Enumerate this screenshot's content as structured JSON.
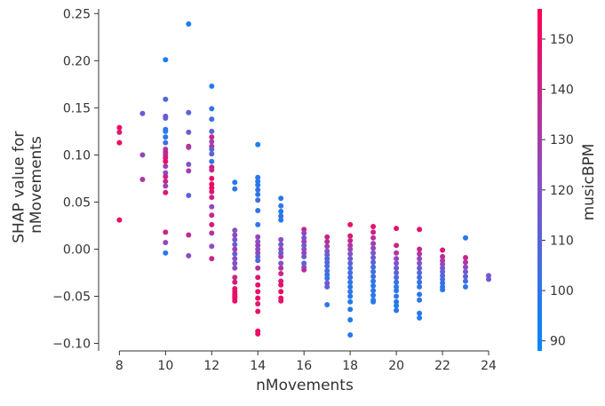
{
  "chart_data": {
    "type": "scatter",
    "xlabel": "nMovements",
    "ylabel_lines": [
      "SHAP value for",
      "nMovements"
    ],
    "xlim": [
      7.1,
      25.0
    ],
    "ylim": [
      -0.108,
      0.255
    ],
    "xticks": [
      8,
      10,
      12,
      14,
      16,
      18,
      20,
      22,
      24
    ],
    "yticks": [
      -0.1,
      -0.05,
      0.0,
      0.05,
      0.1,
      0.15,
      0.2,
      0.25
    ],
    "ytick_labels": [
      "−0.10",
      "−0.05",
      "0.00",
      "0.05",
      "0.10",
      "0.15",
      "0.20",
      "0.25"
    ],
    "grid": false,
    "colorbar": {
      "label": "musicBPM",
      "range": [
        88,
        156
      ],
      "ticks": [
        90,
        100,
        110,
        120,
        130,
        140,
        150
      ],
      "low_color": "#008afb",
      "mid_color": "#8a4ec4",
      "high_color": "#ff0052"
    },
    "points": [
      [
        8,
        0.129,
        150
      ],
      [
        8,
        0.124,
        148
      ],
      [
        8,
        0.113,
        152
      ],
      [
        8,
        0.031,
        150
      ],
      [
        9,
        0.144,
        115
      ],
      [
        9,
        0.1,
        125
      ],
      [
        9,
        0.074,
        132
      ],
      [
        10,
        0.201,
        95
      ],
      [
        10,
        0.159,
        108
      ],
      [
        10,
        0.141,
        118
      ],
      [
        10,
        0.139,
        112
      ],
      [
        10,
        0.127,
        98
      ],
      [
        10,
        0.125,
        100
      ],
      [
        10,
        0.119,
        96
      ],
      [
        10,
        0.113,
        105
      ],
      [
        10,
        0.106,
        130
      ],
      [
        10,
        0.103,
        140
      ],
      [
        10,
        0.1,
        135
      ],
      [
        10,
        0.097,
        145
      ],
      [
        10,
        0.093,
        150
      ],
      [
        10,
        0.088,
        128
      ],
      [
        10,
        0.081,
        120
      ],
      [
        10,
        0.077,
        142
      ],
      [
        10,
        0.072,
        138
      ],
      [
        10,
        0.067,
        126
      ],
      [
        10,
        0.06,
        145
      ],
      [
        10,
        0.018,
        140
      ],
      [
        10,
        0.007,
        125
      ],
      [
        10,
        -0.004,
        98
      ],
      [
        11,
        0.239,
        95
      ],
      [
        11,
        0.145,
        110
      ],
      [
        11,
        0.124,
        116
      ],
      [
        11,
        0.109,
        140
      ],
      [
        11,
        0.108,
        130
      ],
      [
        11,
        0.09,
        122
      ],
      [
        11,
        0.083,
        130
      ],
      [
        11,
        0.057,
        112
      ],
      [
        11,
        0.015,
        138
      ],
      [
        11,
        -0.007,
        122
      ],
      [
        12,
        0.173,
        95
      ],
      [
        12,
        0.149,
        100
      ],
      [
        12,
        0.138,
        104
      ],
      [
        12,
        0.125,
        110
      ],
      [
        12,
        0.119,
        140
      ],
      [
        12,
        0.114,
        128
      ],
      [
        12,
        0.109,
        135
      ],
      [
        12,
        0.106,
        108
      ],
      [
        12,
        0.101,
        112
      ],
      [
        12,
        0.093,
        100
      ],
      [
        12,
        0.087,
        145
      ],
      [
        12,
        0.084,
        138
      ],
      [
        12,
        0.075,
        148
      ],
      [
        12,
        0.069,
        150
      ],
      [
        12,
        0.065,
        152
      ],
      [
        12,
        0.061,
        146
      ],
      [
        12,
        0.055,
        142
      ],
      [
        12,
        0.045,
        125
      ],
      [
        12,
        0.036,
        138
      ],
      [
        12,
        0.026,
        145
      ],
      [
        12,
        0.017,
        133
      ],
      [
        12,
        0.003,
        122
      ],
      [
        12,
        -0.01,
        140
      ],
      [
        13,
        0.071,
        96
      ],
      [
        13,
        0.064,
        100
      ],
      [
        13,
        0.02,
        120
      ],
      [
        13,
        0.015,
        125
      ],
      [
        13,
        0.01,
        118
      ],
      [
        13,
        0.005,
        112
      ],
      [
        13,
        0.0,
        130
      ],
      [
        13,
        -0.005,
        115
      ],
      [
        13,
        -0.01,
        122
      ],
      [
        13,
        -0.015,
        118
      ],
      [
        13,
        -0.02,
        124
      ],
      [
        13,
        -0.03,
        140
      ],
      [
        13,
        -0.035,
        145
      ],
      [
        13,
        -0.042,
        150
      ],
      [
        13,
        -0.045,
        148
      ],
      [
        13,
        -0.048,
        152
      ],
      [
        13,
        -0.05,
        146
      ],
      [
        13,
        -0.052,
        150
      ],
      [
        13,
        -0.055,
        152
      ],
      [
        14,
        0.111,
        95
      ],
      [
        14,
        0.076,
        98
      ],
      [
        14,
        0.072,
        100
      ],
      [
        14,
        0.068,
        96
      ],
      [
        14,
        0.063,
        102
      ],
      [
        14,
        0.058,
        98
      ],
      [
        14,
        0.052,
        104
      ],
      [
        14,
        0.041,
        100
      ],
      [
        14,
        0.026,
        98
      ],
      [
        14,
        0.013,
        125
      ],
      [
        14,
        0.008,
        120
      ],
      [
        14,
        0.004,
        130
      ],
      [
        14,
        0.0,
        118
      ],
      [
        14,
        -0.004,
        126
      ],
      [
        14,
        -0.008,
        112
      ],
      [
        14,
        -0.012,
        108
      ],
      [
        14,
        -0.02,
        135
      ],
      [
        14,
        -0.03,
        145
      ],
      [
        14,
        -0.038,
        150
      ],
      [
        14,
        -0.045,
        148
      ],
      [
        14,
        -0.052,
        152
      ],
      [
        14,
        -0.058,
        146
      ],
      [
        14,
        -0.066,
        150
      ],
      [
        14,
        -0.087,
        152
      ],
      [
        14,
        -0.09,
        150
      ],
      [
        15,
        0.054,
        98
      ],
      [
        15,
        0.046,
        100
      ],
      [
        15,
        0.04,
        96
      ],
      [
        15,
        0.035,
        102
      ],
      [
        15,
        0.031,
        98
      ],
      [
        15,
        0.01,
        122
      ],
      [
        15,
        0.005,
        118
      ],
      [
        15,
        0.0,
        126
      ],
      [
        15,
        -0.004,
        112
      ],
      [
        15,
        -0.008,
        130
      ],
      [
        15,
        -0.015,
        120
      ],
      [
        15,
        -0.02,
        135
      ],
      [
        15,
        -0.026,
        140
      ],
      [
        15,
        -0.034,
        145
      ],
      [
        15,
        -0.038,
        148
      ],
      [
        15,
        -0.045,
        150
      ],
      [
        15,
        -0.052,
        152
      ],
      [
        15,
        -0.055,
        146
      ],
      [
        16,
        0.021,
        140
      ],
      [
        16,
        0.017,
        125
      ],
      [
        16,
        0.012,
        118
      ],
      [
        16,
        0.008,
        130
      ],
      [
        16,
        0.004,
        112
      ],
      [
        16,
        0.0,
        122
      ],
      [
        16,
        -0.004,
        128
      ],
      [
        16,
        -0.008,
        115
      ],
      [
        16,
        -0.015,
        110
      ],
      [
        16,
        -0.019,
        120
      ],
      [
        16,
        -0.022,
        135
      ],
      [
        17,
        0.013,
        140
      ],
      [
        17,
        0.008,
        135
      ],
      [
        17,
        0.003,
        128
      ],
      [
        17,
        -0.002,
        120
      ],
      [
        17,
        -0.006,
        115
      ],
      [
        17,
        -0.01,
        110
      ],
      [
        17,
        -0.014,
        106
      ],
      [
        17,
        -0.018,
        108
      ],
      [
        17,
        -0.023,
        104
      ],
      [
        17,
        -0.027,
        102
      ],
      [
        17,
        -0.031,
        100
      ],
      [
        17,
        -0.036,
        118
      ],
      [
        17,
        -0.04,
        112
      ],
      [
        17,
        -0.059,
        100
      ],
      [
        18,
        0.026,
        150
      ],
      [
        18,
        0.014,
        145
      ],
      [
        18,
        0.009,
        138
      ],
      [
        18,
        0.004,
        132
      ],
      [
        18,
        0.0,
        126
      ],
      [
        18,
        -0.005,
        120
      ],
      [
        18,
        -0.01,
        115
      ],
      [
        18,
        -0.015,
        110
      ],
      [
        18,
        -0.02,
        106
      ],
      [
        18,
        -0.025,
        104
      ],
      [
        18,
        -0.03,
        102
      ],
      [
        18,
        -0.035,
        100
      ],
      [
        18,
        -0.04,
        98
      ],
      [
        18,
        -0.045,
        100
      ],
      [
        18,
        -0.05,
        98
      ],
      [
        18,
        -0.056,
        96
      ],
      [
        18,
        -0.064,
        98
      ],
      [
        18,
        -0.075,
        96
      ],
      [
        18,
        -0.091,
        98
      ],
      [
        19,
        0.024,
        148
      ],
      [
        19,
        0.018,
        142
      ],
      [
        19,
        0.012,
        136
      ],
      [
        19,
        0.006,
        130
      ],
      [
        19,
        0.001,
        124
      ],
      [
        19,
        -0.004,
        118
      ],
      [
        19,
        -0.009,
        114
      ],
      [
        19,
        -0.014,
        110
      ],
      [
        19,
        -0.019,
        106
      ],
      [
        19,
        -0.024,
        104
      ],
      [
        19,
        -0.029,
        102
      ],
      [
        19,
        -0.034,
        100
      ],
      [
        19,
        -0.039,
        98
      ],
      [
        19,
        -0.044,
        100
      ],
      [
        19,
        -0.049,
        98
      ],
      [
        19,
        -0.054,
        96
      ],
      [
        19,
        -0.056,
        98
      ],
      [
        20,
        0.022,
        148
      ],
      [
        20,
        0.004,
        140
      ],
      [
        20,
        -0.004,
        132
      ],
      [
        20,
        -0.01,
        126
      ],
      [
        20,
        -0.015,
        120
      ],
      [
        20,
        -0.02,
        114
      ],
      [
        20,
        -0.025,
        110
      ],
      [
        20,
        -0.03,
        106
      ],
      [
        20,
        -0.035,
        102
      ],
      [
        20,
        -0.04,
        100
      ],
      [
        20,
        -0.044,
        98
      ],
      [
        20,
        -0.05,
        100
      ],
      [
        20,
        -0.056,
        98
      ],
      [
        20,
        -0.06,
        96
      ],
      [
        20,
        -0.065,
        98
      ],
      [
        21,
        0.021,
        148
      ],
      [
        21,
        0.0,
        140
      ],
      [
        21,
        -0.005,
        132
      ],
      [
        21,
        -0.01,
        126
      ],
      [
        21,
        -0.015,
        120
      ],
      [
        21,
        -0.02,
        114
      ],
      [
        21,
        -0.025,
        108
      ],
      [
        21,
        -0.03,
        104
      ],
      [
        21,
        -0.035,
        102
      ],
      [
        21,
        -0.04,
        100
      ],
      [
        21,
        -0.048,
        98
      ],
      [
        21,
        -0.054,
        100
      ],
      [
        21,
        -0.068,
        98
      ],
      [
        21,
        -0.073,
        96
      ],
      [
        22,
        -0.001,
        145
      ],
      [
        22,
        -0.008,
        138
      ],
      [
        22,
        -0.012,
        130
      ],
      [
        22,
        -0.016,
        124
      ],
      [
        22,
        -0.02,
        118
      ],
      [
        22,
        -0.024,
        112
      ],
      [
        22,
        -0.028,
        108
      ],
      [
        22,
        -0.032,
        104
      ],
      [
        22,
        -0.036,
        102
      ],
      [
        22,
        -0.04,
        100
      ],
      [
        22,
        -0.043,
        98
      ],
      [
        23,
        0.012,
        98
      ],
      [
        23,
        -0.009,
        140
      ],
      [
        23,
        -0.014,
        132
      ],
      [
        23,
        -0.019,
        124
      ],
      [
        23,
        -0.024,
        116
      ],
      [
        23,
        -0.029,
        110
      ],
      [
        23,
        -0.034,
        104
      ],
      [
        23,
        -0.04,
        100
      ],
      [
        24,
        -0.028,
        118
      ],
      [
        24,
        -0.032,
        114
      ]
    ]
  }
}
